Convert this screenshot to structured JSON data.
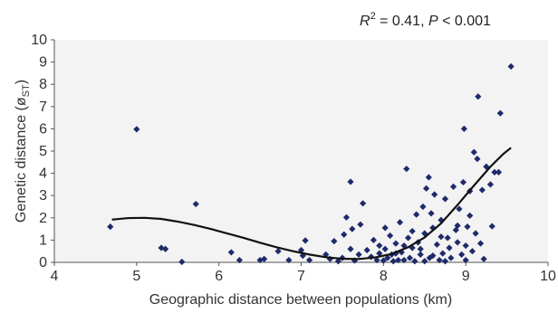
{
  "chart_data": {
    "type": "scatter",
    "annotation": {
      "r": "R",
      "sq": "2",
      "eq": " = 0.41, ",
      "p": "P",
      "rest": " < 0.001"
    },
    "xlabel": "Geographic distance between populations (km)",
    "ylabel_main": "Genetic distance (ø",
    "ylabel_sub": "ST",
    "ylabel_end": ")",
    "xlim": [
      4,
      10
    ],
    "ylim": [
      0,
      10
    ],
    "xticks": [
      "4",
      "5",
      "6",
      "7",
      "8",
      "9",
      "10"
    ],
    "yticks": [
      "0",
      "1",
      "2",
      "3",
      "4",
      "5",
      "6",
      "7",
      "8",
      "9",
      "10"
    ],
    "grid": false,
    "colors": {
      "point": "#1f2a6b",
      "curve": "#111111",
      "plot_bg": "#f3f3f3"
    },
    "points": [
      [
        4.68,
        1.6
      ],
      [
        5.0,
        5.98
      ],
      [
        5.3,
        0.65
      ],
      [
        5.35,
        0.6
      ],
      [
        5.55,
        0.02
      ],
      [
        5.72,
        2.62
      ],
      [
        6.15,
        0.45
      ],
      [
        6.25,
        0.1
      ],
      [
        6.5,
        0.1
      ],
      [
        6.55,
        0.15
      ],
      [
        6.72,
        0.5
      ],
      [
        6.85,
        0.1
      ],
      [
        7.0,
        0.55
      ],
      [
        7.02,
        0.3
      ],
      [
        7.05,
        0.98
      ],
      [
        7.1,
        0.1
      ],
      [
        7.3,
        0.35
      ],
      [
        7.35,
        0.15
      ],
      [
        7.45,
        0.05
      ],
      [
        7.5,
        0.2
      ],
      [
        7.52,
        1.25
      ],
      [
        7.55,
        2.02
      ],
      [
        7.6,
        3.62
      ],
      [
        7.62,
        1.5
      ],
      [
        7.65,
        0.08
      ],
      [
        7.7,
        0.35
      ],
      [
        7.72,
        1.7
      ],
      [
        7.75,
        2.65
      ],
      [
        7.8,
        0.55
      ],
      [
        7.85,
        0.25
      ],
      [
        7.88,
        1.0
      ],
      [
        7.92,
        0.1
      ],
      [
        7.95,
        0.4
      ],
      [
        8.0,
        0.08
      ],
      [
        8.02,
        0.6
      ],
      [
        8.05,
        0.2
      ],
      [
        8.08,
        1.2
      ],
      [
        8.1,
        0.35
      ],
      [
        8.12,
        0.05
      ],
      [
        8.15,
        0.85
      ],
      [
        8.18,
        0.1
      ],
      [
        8.2,
        1.8
      ],
      [
        8.22,
        0.45
      ],
      [
        8.25,
        0.1
      ],
      [
        8.28,
        4.2
      ],
      [
        8.3,
        1.1
      ],
      [
        8.32,
        0.2
      ],
      [
        8.35,
        0.65
      ],
      [
        8.38,
        0.05
      ],
      [
        8.4,
        2.15
      ],
      [
        8.42,
        0.9
      ],
      [
        8.45,
        0.35
      ],
      [
        8.48,
        2.5
      ],
      [
        8.5,
        1.3
      ],
      [
        8.52,
        3.32
      ],
      [
        8.55,
        3.82
      ],
      [
        8.56,
        0.2
      ],
      [
        8.58,
        2.2
      ],
      [
        8.6,
        1.55
      ],
      [
        8.62,
        3.05
      ],
      [
        8.65,
        0.8
      ],
      [
        8.68,
        0.1
      ],
      [
        8.7,
        1.9
      ],
      [
        8.72,
        0.4
      ],
      [
        8.75,
        2.85
      ],
      [
        8.78,
        1.1
      ],
      [
        8.8,
        0.65
      ],
      [
        8.82,
        0.2
      ],
      [
        8.85,
        3.4
      ],
      [
        8.88,
        1.45
      ],
      [
        8.9,
        0.9
      ],
      [
        8.92,
        2.4
      ],
      [
        8.95,
        0.35
      ],
      [
        8.97,
        3.6
      ],
      [
        8.98,
        6.0
      ],
      [
        9.0,
        0.75
      ],
      [
        9.02,
        1.6
      ],
      [
        9.05,
        3.2
      ],
      [
        9.08,
        0.5
      ],
      [
        9.1,
        4.95
      ],
      [
        9.12,
        1.3
      ],
      [
        9.14,
        4.65
      ],
      [
        9.15,
        7.45
      ],
      [
        9.18,
        0.85
      ],
      [
        9.2,
        3.25
      ],
      [
        9.22,
        0.15
      ],
      [
        9.25,
        4.3
      ],
      [
        9.3,
        3.5
      ],
      [
        9.32,
        1.62
      ],
      [
        9.35,
        4.05
      ],
      [
        9.4,
        4.05
      ],
      [
        9.42,
        6.7
      ],
      [
        9.55,
        8.8
      ],
      [
        8.25,
        0.75
      ],
      [
        8.45,
        0.6
      ],
      [
        8.6,
        0.3
      ],
      [
        8.02,
        1.55
      ],
      [
        8.7,
        1.15
      ],
      [
        8.9,
        1.65
      ],
      [
        9.05,
        2.1
      ],
      [
        8.35,
        1.4
      ],
      [
        7.95,
        0.75
      ],
      [
        7.6,
        0.6
      ],
      [
        7.4,
        0.95
      ],
      [
        8.15,
        0.4
      ],
      [
        8.5,
        0.05
      ],
      [
        8.75,
        0.05
      ],
      [
        9.0,
        0.1
      ]
    ],
    "curve": [
      [
        4.7,
        1.92
      ],
      [
        4.9,
        1.99
      ],
      [
        5.1,
        2.0
      ],
      [
        5.3,
        1.95
      ],
      [
        5.5,
        1.83
      ],
      [
        5.7,
        1.68
      ],
      [
        5.9,
        1.5
      ],
      [
        6.1,
        1.3
      ],
      [
        6.3,
        1.1
      ],
      [
        6.5,
        0.88
      ],
      [
        6.7,
        0.68
      ],
      [
        6.9,
        0.5
      ],
      [
        7.1,
        0.35
      ],
      [
        7.3,
        0.23
      ],
      [
        7.5,
        0.16
      ],
      [
        7.7,
        0.15
      ],
      [
        7.9,
        0.22
      ],
      [
        8.1,
        0.38
      ],
      [
        8.3,
        0.68
      ],
      [
        8.5,
        1.12
      ],
      [
        8.7,
        1.75
      ],
      [
        8.9,
        2.58
      ],
      [
        9.1,
        3.45
      ],
      [
        9.3,
        4.3
      ],
      [
        9.45,
        4.85
      ],
      [
        9.55,
        5.15
      ]
    ]
  }
}
